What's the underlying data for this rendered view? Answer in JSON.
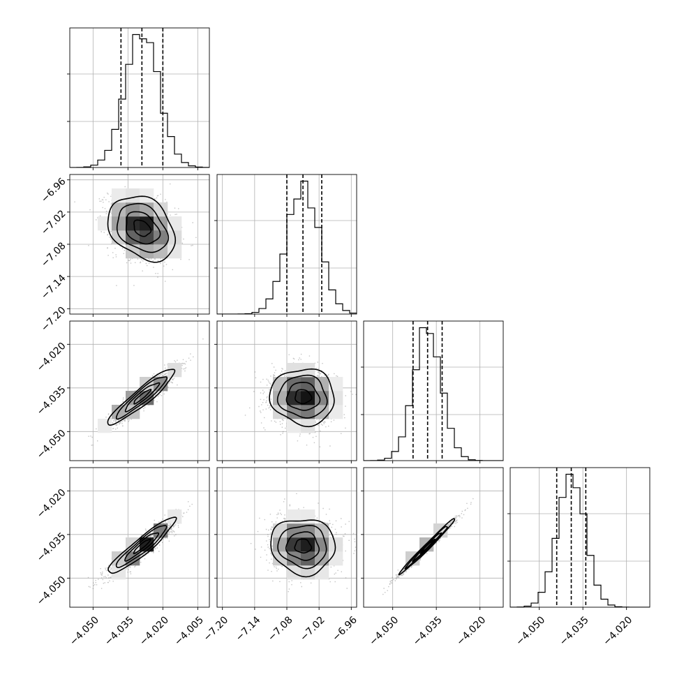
{
  "chart_data": {
    "type": "corner",
    "grid": true,
    "parameters": [
      {
        "index": 0,
        "range": [
          -4.06,
          -4.0
        ],
        "ticks": [
          "-4.050",
          "-4.035",
          "-4.020",
          "-4.005"
        ],
        "tick_values": [
          -4.05,
          -4.035,
          -4.02,
          -4.005
        ],
        "mean": -4.029,
        "std": 0.0072,
        "quantiles": [
          -4.038,
          -4.029,
          -4.02
        ]
      },
      {
        "index": 1,
        "range": [
          -7.21,
          -6.95
        ],
        "ticks": [
          "-7.20",
          "-7.14",
          "-7.08",
          "-7.02",
          "-6.96"
        ],
        "tick_values": [
          -7.2,
          -7.14,
          -7.08,
          -7.02,
          -6.96
        ],
        "mean": -7.05,
        "std": 0.03,
        "quantiles": [
          -7.08,
          -7.05,
          -7.015
        ]
      },
      {
        "index": 2,
        "range": [
          -4.06,
          -4.012
        ],
        "ticks": [
          "-4.050",
          "-4.035",
          "-4.020"
        ],
        "tick_values": [
          -4.05,
          -4.035,
          -4.02
        ],
        "mean": -4.038,
        "std": 0.0048,
        "quantiles": [
          -4.043,
          -4.038,
          -4.033
        ]
      },
      {
        "index": 3,
        "range": [
          -4.06,
          -4.012
        ],
        "ticks": [
          "-4.050",
          "-4.035",
          "-4.020"
        ],
        "tick_values": [
          -4.05,
          -4.035,
          -4.02
        ],
        "mean": -4.039,
        "std": 0.0048,
        "quantiles": [
          -4.044,
          -4.039,
          -4.034
        ]
      }
    ],
    "correlations": [
      {
        "pair": [
          1,
          0
        ],
        "rho": -0.3
      },
      {
        "pair": [
          2,
          0
        ],
        "rho": 0.93
      },
      {
        "pair": [
          2,
          1
        ],
        "rho": -0.05
      },
      {
        "pair": [
          3,
          0
        ],
        "rho": 0.93
      },
      {
        "pair": [
          3,
          1
        ],
        "rho": -0.05
      },
      {
        "pair": [
          3,
          2
        ],
        "rho": 0.99
      }
    ],
    "contour_levels_sigma": [
      0.5,
      1.0,
      1.5,
      2.0
    ],
    "histogram_bins": 20,
    "density_bins": 10
  }
}
